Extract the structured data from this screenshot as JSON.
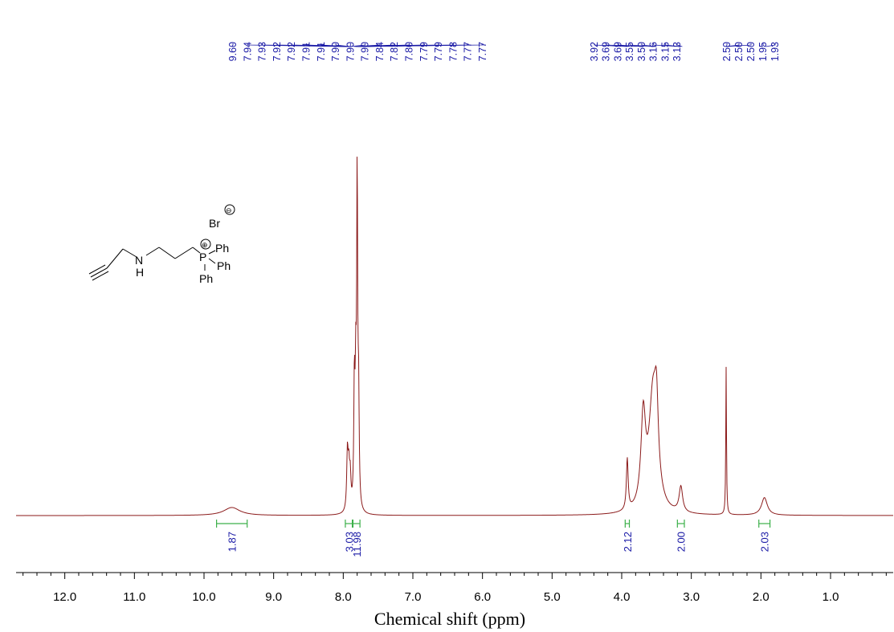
{
  "chart_data": {
    "type": "line",
    "xlabel": "Chemical shift (ppm)",
    "ylabel": "",
    "xlim": [
      12.7,
      0.1
    ],
    "x_ticks": [
      {
        "value": 12.0,
        "label": "12.0"
      },
      {
        "value": 11.0,
        "label": "11.0"
      },
      {
        "value": 10.0,
        "label": "10.0"
      },
      {
        "value": 9.0,
        "label": "9.0"
      },
      {
        "value": 8.0,
        "label": "8.0"
      },
      {
        "value": 7.0,
        "label": "7.0"
      },
      {
        "value": 6.0,
        "label": "6.0"
      },
      {
        "value": 5.0,
        "label": "5.0"
      },
      {
        "value": 4.0,
        "label": "4.0"
      },
      {
        "value": 3.0,
        "label": "3.0"
      },
      {
        "value": 2.0,
        "label": "2.0"
      },
      {
        "value": 1.0,
        "label": "1.0"
      }
    ],
    "peaks": [
      {
        "ppm": 9.6,
        "intensity": 0.025,
        "width": 0.14
      },
      {
        "ppm": 7.94,
        "intensity": 0.18,
        "width": 0.012
      },
      {
        "ppm": 7.92,
        "intensity": 0.12,
        "width": 0.012
      },
      {
        "ppm": 7.9,
        "intensity": 0.1,
        "width": 0.012
      },
      {
        "ppm": 7.84,
        "intensity": 0.38,
        "width": 0.01
      },
      {
        "ppm": 7.82,
        "intensity": 0.36,
        "width": 0.01
      },
      {
        "ppm": 7.8,
        "intensity": 1.0,
        "width": 0.008
      },
      {
        "ppm": 7.78,
        "intensity": 0.34,
        "width": 0.01
      },
      {
        "ppm": 3.92,
        "intensity": 0.16,
        "width": 0.015
      },
      {
        "ppm": 3.69,
        "intensity": 0.28,
        "width": 0.04
      },
      {
        "ppm": 3.55,
        "intensity": 0.36,
        "width": 0.07
      },
      {
        "ppm": 3.5,
        "intensity": 0.2,
        "width": 0.03
      },
      {
        "ppm": 3.15,
        "intensity": 0.08,
        "width": 0.03
      },
      {
        "ppm": 2.5,
        "intensity": 0.46,
        "width": 0.006
      },
      {
        "ppm": 1.95,
        "intensity": 0.055,
        "width": 0.05
      }
    ],
    "peak_labels": [
      "9.60",
      "7.94",
      "7.93",
      "7.92",
      "7.92",
      "7.91",
      "7.91",
      "7.90",
      "7.90",
      "7.90",
      "7.84",
      "7.82",
      "7.80",
      "7.79",
      "7.79",
      "7.78",
      "7.77",
      "7.77",
      "3.92",
      "3.69",
      "3.69",
      "3.55",
      "3.50",
      "3.16",
      "3.15",
      "3.13",
      "2.50",
      "2.50",
      "2.50",
      "1.95",
      "1.93"
    ],
    "integrals": [
      {
        "from": 9.82,
        "to": 9.38,
        "value": "1.87"
      },
      {
        "from": 7.97,
        "to": 7.87,
        "value": "3.03"
      },
      {
        "from": 7.86,
        "to": 7.76,
        "value": "11.98"
      },
      {
        "from": 3.95,
        "to": 3.89,
        "value": "2.12"
      },
      {
        "from": 3.2,
        "to": 3.1,
        "value": "2.00"
      },
      {
        "from": 2.03,
        "to": 1.87,
        "value": "2.03"
      }
    ]
  },
  "structure": {
    "counterion": "Br",
    "counterion_charge": "⊖",
    "amine": "N",
    "amine_h": "H",
    "phosphorus": "P",
    "phosphorus_charge": "⊕",
    "phenyl_1": "Ph",
    "phenyl_2": "Ph",
    "phenyl_3": "Ph"
  },
  "colors": {
    "spectrum": "#8b1a1a",
    "labels": "#1a1aa6",
    "integral": "#3cb04a"
  }
}
